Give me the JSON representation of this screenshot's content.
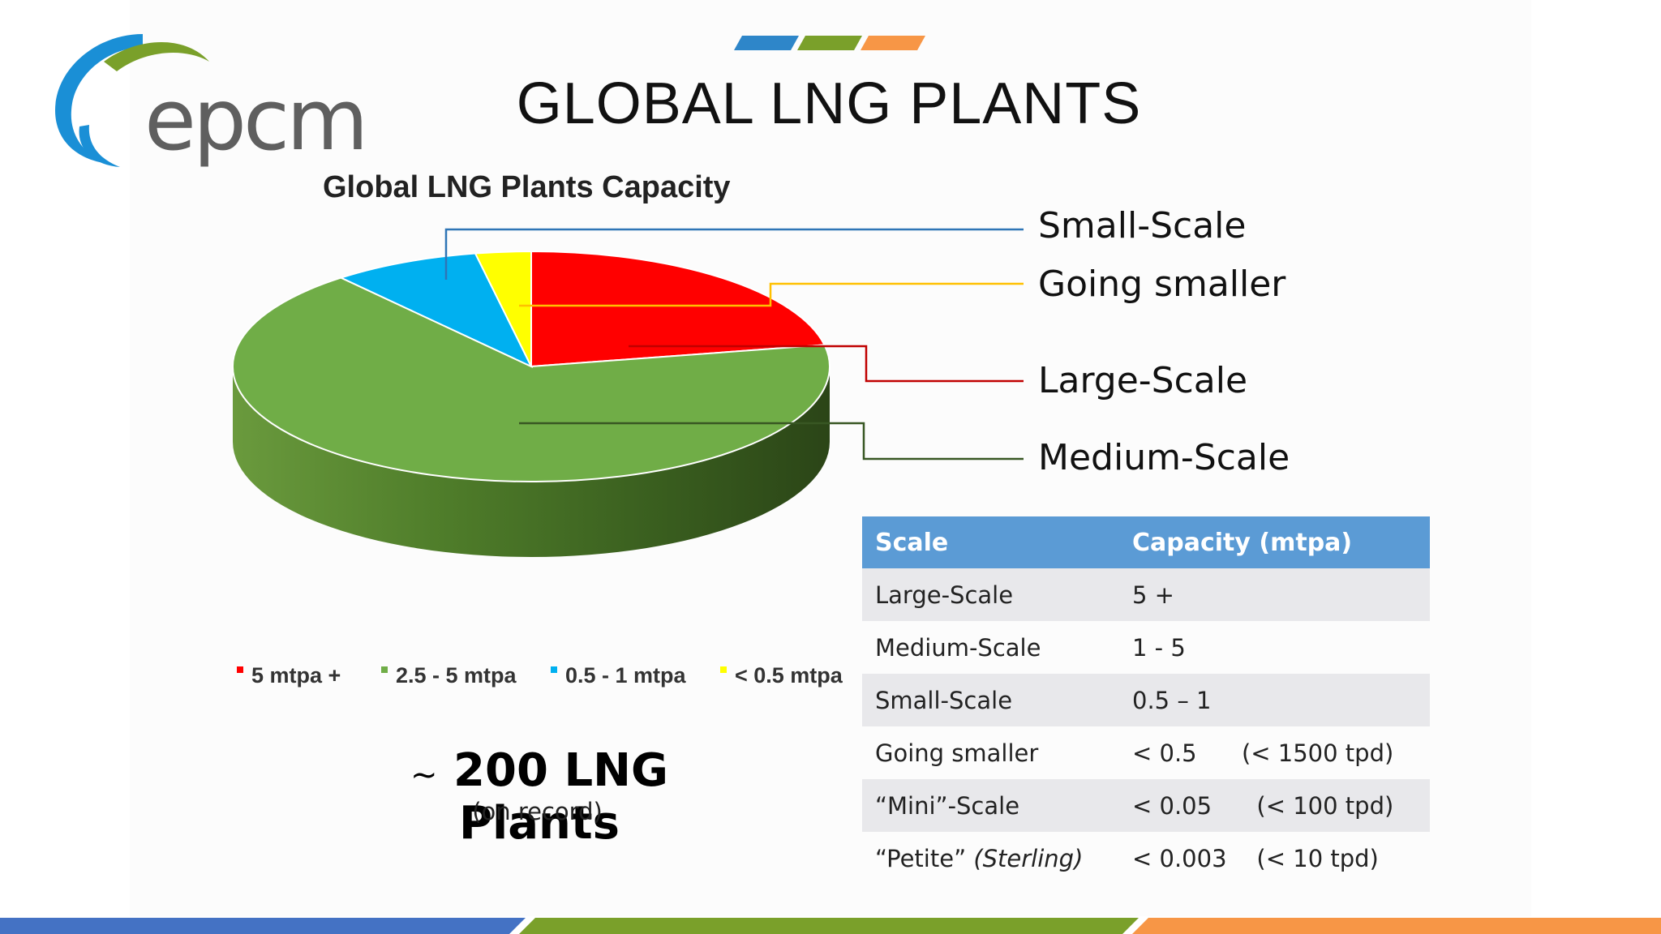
{
  "header": {
    "logo_text": "epcm",
    "title": "GLOBAL LNG PLANTS"
  },
  "chart_data": {
    "type": "pie",
    "title": "Global LNG Plants Capacity",
    "categories": [
      "5  mtpa +",
      "2.5 - 5 mtpa",
      "0.5 - 1 mtpa",
      "< 0.5 mtpa"
    ],
    "values": [
      22,
      67,
      8,
      3
    ],
    "colors": [
      "#ff0000",
      "#70ad47",
      "#00b0f0",
      "#ffff00"
    ],
    "legend_placement": "bottom",
    "three_d": true
  },
  "callouts": {
    "small": "Small-Scale",
    "going_smaller": "Going smaller",
    "large": "Large-Scale",
    "medium": "Medium-Scale"
  },
  "summary": {
    "tilde": "~",
    "count": "200 LNG Plants",
    "note": "(on record)"
  },
  "table": {
    "headers": [
      "Scale",
      "Capacity (mtpa)"
    ],
    "rows": [
      {
        "scale": "Large-Scale",
        "scale_italic": "",
        "capacity": "5 +"
      },
      {
        "scale": "Medium-Scale",
        "scale_italic": "",
        "capacity": "1 - 5"
      },
      {
        "scale": "Small-Scale",
        "scale_italic": "",
        "capacity": "0.5 – 1"
      },
      {
        "scale": "Going smaller",
        "scale_italic": "",
        "capacity": "< 0.5      (< 1500 tpd)"
      },
      {
        "scale": "“Mini”-Scale",
        "scale_italic": "",
        "capacity": "< 0.05      (< 100 tpd)"
      },
      {
        "scale": "“Petite” ",
        "scale_italic": "(Sterling)",
        "capacity": "< 0.003    (< 10 tpd)"
      }
    ]
  },
  "brand_colors": {
    "blue": "#4472c4",
    "green": "#7aa02a",
    "orange": "#f79646"
  }
}
